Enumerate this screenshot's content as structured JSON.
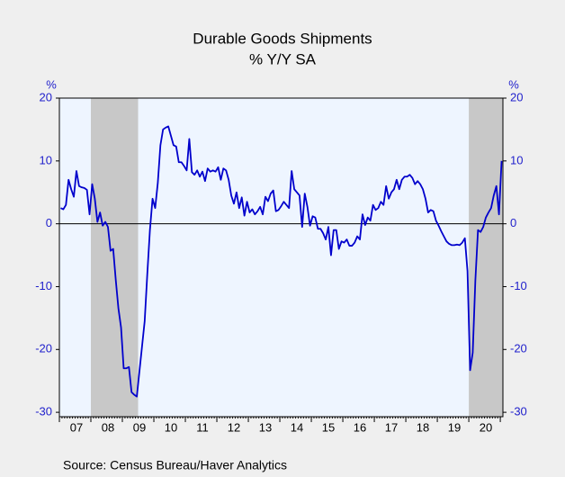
{
  "chart_data": {
    "type": "line",
    "title": "Durable Goods Shipments",
    "subtitle": "% Y/Y   SA",
    "source": "Source:   Census Bureau/Haver Analytics",
    "y_label": "%",
    "y2_label": "%",
    "ylim": [
      -30.7,
      20
    ],
    "yticks": [
      -30,
      -20,
      -10,
      0,
      10,
      20
    ],
    "y2lim": [
      -30.7,
      20
    ],
    "y2ticks": [
      -30,
      -20,
      -10,
      0,
      10,
      20
    ],
    "shaded_ranges": [
      [
        12,
        29
      ],
      [
        156,
        168
      ]
    ],
    "shade_color": "#c8c8c8",
    "categories": [
      null,
      null,
      null,
      null,
      null,
      null,
      "07",
      null,
      null,
      null,
      null,
      null,
      null,
      null,
      null,
      null,
      null,
      null,
      "08",
      null,
      null,
      null,
      null,
      null,
      null,
      null,
      null,
      null,
      null,
      null,
      "09",
      null,
      null,
      null,
      null,
      null,
      null,
      null,
      null,
      null,
      null,
      null,
      "10",
      null,
      null,
      null,
      null,
      null,
      null,
      null,
      null,
      null,
      null,
      null,
      "11",
      null,
      null,
      null,
      null,
      null,
      null,
      null,
      null,
      null,
      null,
      null,
      "12",
      null,
      null,
      null,
      null,
      null,
      null,
      null,
      null,
      null,
      null,
      null,
      "13",
      null,
      null,
      null,
      null,
      null,
      null,
      null,
      null,
      null,
      null,
      null,
      "14",
      null,
      null,
      null,
      null,
      null,
      null,
      null,
      null,
      null,
      null,
      null,
      "15",
      null,
      null,
      null,
      null,
      null,
      null,
      null,
      null,
      null,
      null,
      null,
      "16",
      null,
      null,
      null,
      null,
      null,
      null,
      null,
      null,
      null,
      null,
      null,
      "17",
      null,
      null,
      null,
      null,
      null,
      null,
      null,
      null,
      null,
      null,
      null,
      "18",
      null,
      null,
      null,
      null,
      null,
      null,
      null,
      null,
      null,
      null,
      null,
      "19",
      null,
      null,
      null,
      null,
      null,
      null,
      null,
      null,
      null,
      null,
      null,
      "20",
      null,
      null,
      null,
      null,
      null,
      null
    ],
    "series": [
      {
        "name": "Durable Goods Shipments",
        "color": "#0000cc",
        "axis": "y",
        "values": [
          2.5,
          2.3,
          3.0,
          7.0,
          5.5,
          4.3,
          8.4,
          6.0,
          5.8,
          5.7,
          5.4,
          1.5,
          6.3,
          4.0,
          0.3,
          1.8,
          -0.3,
          0.3,
          -0.5,
          -4.3,
          -4.0,
          -9.0,
          -13.5,
          -16.5,
          -23.0,
          -23.0,
          -22.8,
          -26.8,
          -27.2,
          -27.5,
          -23.5,
          -19.5,
          -15.5,
          -8.0,
          -1.0,
          4.0,
          2.5,
          6.5,
          12.5,
          15.0,
          15.3,
          15.5,
          14.0,
          12.5,
          12.3,
          9.8,
          9.8,
          9.2,
          8.5,
          13.5,
          8.2,
          7.8,
          8.5,
          7.5,
          8.3,
          6.8,
          8.8,
          8.3,
          8.5,
          8.3,
          9.0,
          7.0,
          8.8,
          8.5,
          7.0,
          4.5,
          3.2,
          5.0,
          2.5,
          4.2,
          1.3,
          3.5,
          1.8,
          2.3,
          1.5,
          2.0,
          2.7,
          1.5,
          4.3,
          3.6,
          4.8,
          5.3,
          2.0,
          2.2,
          2.8,
          3.5,
          3.0,
          2.5,
          8.4,
          5.5,
          5.0,
          4.5,
          -0.5,
          4.8,
          2.7,
          -0.3,
          1.2,
          1.0,
          -0.8,
          -0.8,
          -1.5,
          -2.5,
          -0.5,
          -5.0,
          -1.0,
          -1.0,
          -4.0,
          -2.8,
          -3.0,
          -2.5,
          -3.5,
          -3.5,
          -3.0,
          -2.0,
          -2.5,
          1.5,
          -0.2,
          1.0,
          0.5,
          3.0,
          2.2,
          2.5,
          3.5,
          3.0,
          6.0,
          4.0,
          5.0,
          5.5,
          7.0,
          5.5,
          7.0,
          7.5,
          7.5,
          7.8,
          7.3,
          6.3,
          6.8,
          6.3,
          5.5,
          4.0,
          1.8,
          2.2,
          2.0,
          0.5,
          -0.3,
          -1.2,
          -2.0,
          -2.8,
          -3.2,
          -3.4,
          -3.4,
          -3.3,
          -3.4,
          -3.0,
          -2.3,
          -7.5,
          -23.3,
          -20.5,
          -9.0,
          -1.0,
          -1.3,
          -0.5,
          1.0,
          1.8,
          2.5,
          4.5,
          6.0,
          1.5,
          10.0
        ]
      }
    ]
  }
}
